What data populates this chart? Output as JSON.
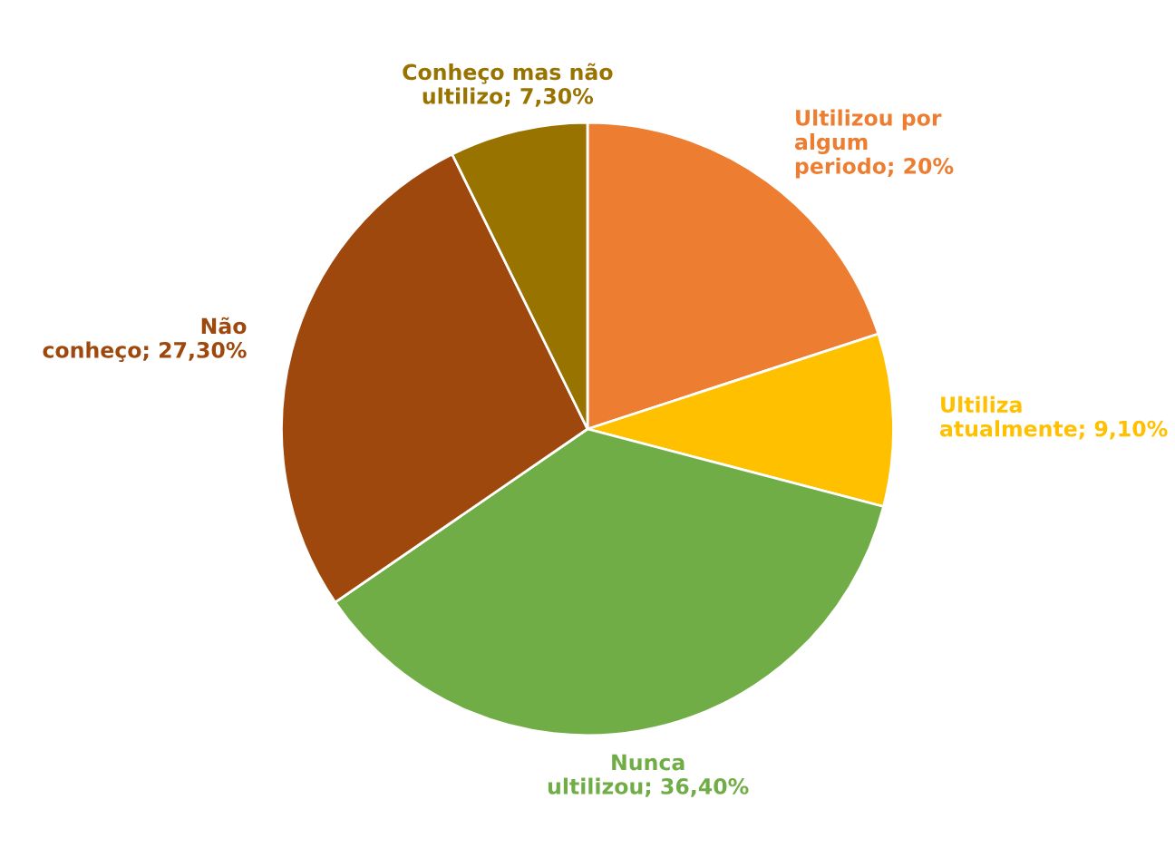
{
  "chart_data": {
    "type": "pie",
    "categories": [
      "Ultilizou por algum periodo",
      "Ultiliza atualmente",
      "Nunca ultilizou",
      "Não conheço",
      "Conheço mas não ultilizo"
    ],
    "values": [
      20,
      9.1,
      36.4,
      27.3,
      7.3
    ],
    "value_labels": [
      "20%",
      "9,10%",
      "36,40%",
      "27,30%",
      "7,30%"
    ],
    "colors": [
      "#ed7d31",
      "#ffc000",
      "#70ad47",
      "#9e480e",
      "#997300"
    ],
    "legend": false
  }
}
